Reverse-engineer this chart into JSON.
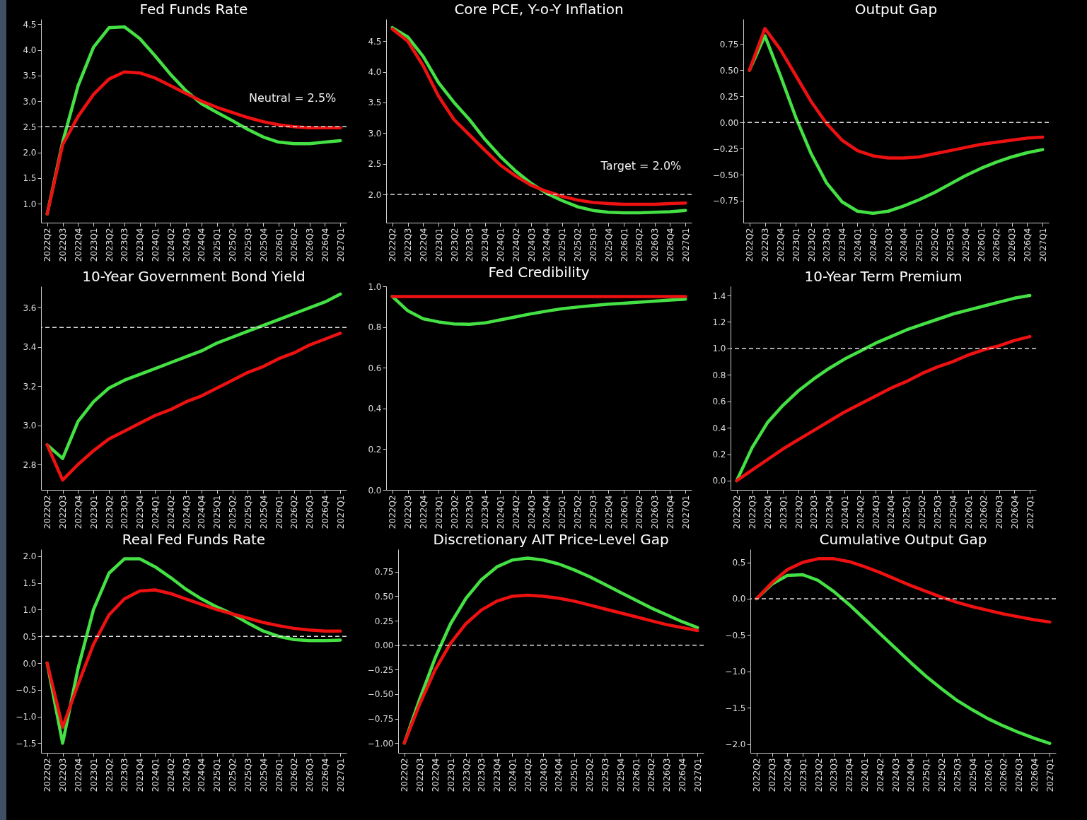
{
  "chart_data": [
    {
      "type": "line",
      "title": "Fed Funds Rate",
      "categories": [
        "2022Q2",
        "2022Q3",
        "2022Q4",
        "2023Q1",
        "2023Q2",
        "2023Q3",
        "2023Q4",
        "2024Q1",
        "2024Q2",
        "2024Q3",
        "2024Q4",
        "2025Q1",
        "2025Q2",
        "2025Q3",
        "2025Q4",
        "2026Q1",
        "2026Q2",
        "2026Q3",
        "2026Q4",
        "2027Q1"
      ],
      "series": [
        {
          "color": "#44e044",
          "values": [
            0.8,
            2.2,
            3.3,
            4.05,
            4.43,
            4.45,
            4.22,
            3.88,
            3.52,
            3.2,
            2.95,
            2.78,
            2.62,
            2.45,
            2.3,
            2.2,
            2.17,
            2.17,
            2.2,
            2.23
          ]
        },
        {
          "color": "#ee1111",
          "values": [
            0.8,
            2.15,
            2.7,
            3.13,
            3.43,
            3.57,
            3.55,
            3.45,
            3.3,
            3.15,
            3.0,
            2.88,
            2.78,
            2.68,
            2.6,
            2.54,
            2.5,
            2.48,
            2.48,
            2.48
          ]
        }
      ],
      "ylim": [
        0.63,
        4.6
      ],
      "yticks": [
        {
          "value": 1,
          "label": "1.0"
        },
        {
          "value": 1.5,
          "label": "1.5"
        },
        {
          "value": 2,
          "label": "2.0"
        },
        {
          "value": 2.5,
          "label": "2.5"
        },
        {
          "value": 3,
          "label": "3.0"
        },
        {
          "value": 3.5,
          "label": "3.5"
        },
        {
          "value": 4,
          "label": "4.0"
        },
        {
          "value": 4.5,
          "label": "4.5"
        }
      ],
      "ref_lines": [
        {
          "axis": "y",
          "value": 2.5,
          "label": "Neutral = 2.5%",
          "color": "#dddddd",
          "line_style": "dashed"
        }
      ]
    },
    {
      "type": "line",
      "title": "Core PCE, Y-o-Y Inflation",
      "categories": [
        "2022Q2",
        "2022Q3",
        "2022Q4",
        "2023Q1",
        "2023Q2",
        "2023Q3",
        "2023Q4",
        "2024Q1",
        "2024Q2",
        "2024Q3",
        "2024Q4",
        "2025Q1",
        "2025Q2",
        "2025Q3",
        "2025Q4",
        "2026Q1",
        "2026Q2",
        "2026Q3",
        "2026Q4",
        "2027Q1"
      ],
      "series": [
        {
          "color": "#44e044",
          "values": [
            4.72,
            4.57,
            4.25,
            3.82,
            3.5,
            3.22,
            2.9,
            2.62,
            2.38,
            2.18,
            2.02,
            1.9,
            1.8,
            1.74,
            1.71,
            1.7,
            1.7,
            1.71,
            1.72,
            1.74
          ]
        },
        {
          "color": "#ee1111",
          "values": [
            4.7,
            4.5,
            4.1,
            3.6,
            3.22,
            2.97,
            2.72,
            2.48,
            2.3,
            2.15,
            2.05,
            1.97,
            1.91,
            1.87,
            1.85,
            1.84,
            1.84,
            1.84,
            1.85,
            1.86
          ]
        }
      ],
      "ylim": [
        1.54,
        4.86
      ],
      "yticks": [
        {
          "value": 2,
          "label": "2.0"
        },
        {
          "value": 2.5,
          "label": "2.5"
        },
        {
          "value": 3,
          "label": "3.0"
        },
        {
          "value": 3.5,
          "label": "3.5"
        },
        {
          "value": 4,
          "label": "4.0"
        },
        {
          "value": 4.5,
          "label": "4.5"
        }
      ],
      "ref_lines": [
        {
          "axis": "y",
          "value": 2.0,
          "label": "Target = 2.0%",
          "color": "#dddddd",
          "line_style": "dashed"
        }
      ]
    },
    {
      "type": "line",
      "title": "Output Gap",
      "categories": [
        "2022Q2",
        "2022Q3",
        "2022Q4",
        "2023Q1",
        "2023Q2",
        "2023Q3",
        "2023Q4",
        "2024Q1",
        "2024Q2",
        "2024Q3",
        "2024Q4",
        "2025Q1",
        "2025Q2",
        "2025Q3",
        "2025Q4",
        "2026Q1",
        "2026Q2",
        "2026Q3",
        "2026Q4",
        "2027Q1"
      ],
      "series": [
        {
          "color": "#44e044",
          "values": [
            0.5,
            0.83,
            0.45,
            0.05,
            -0.3,
            -0.58,
            -0.76,
            -0.85,
            -0.87,
            -0.85,
            -0.8,
            -0.74,
            -0.67,
            -0.59,
            -0.51,
            -0.44,
            -0.38,
            -0.33,
            -0.29,
            -0.26
          ]
        },
        {
          "color": "#ee1111",
          "values": [
            0.5,
            0.9,
            0.7,
            0.45,
            0.2,
            -0.01,
            -0.17,
            -0.27,
            -0.32,
            -0.34,
            -0.34,
            -0.33,
            -0.3,
            -0.27,
            -0.24,
            -0.21,
            -0.19,
            -0.17,
            -0.15,
            -0.14
          ]
        }
      ],
      "ylim": [
        -0.96,
        0.99
      ],
      "yticks": [
        {
          "value": -0.75,
          "label": "−0.75"
        },
        {
          "value": -0.5,
          "label": "−0.50"
        },
        {
          "value": -0.25,
          "label": "−0.25"
        },
        {
          "value": 0,
          "label": "0.00"
        },
        {
          "value": 0.25,
          "label": "0.25"
        },
        {
          "value": 0.5,
          "label": "0.50"
        },
        {
          "value": 0.75,
          "label": "0.75"
        }
      ],
      "ref_lines": [
        {
          "axis": "y",
          "value": 0,
          "color": "#dddddd",
          "line_style": "dashed"
        }
      ]
    },
    {
      "type": "line",
      "title": "10-Year Government Bond Yield",
      "categories": [
        "2022Q2",
        "2022Q3",
        "2022Q4",
        "2023Q1",
        "2023Q2",
        "2023Q3",
        "2023Q4",
        "2024Q1",
        "2024Q2",
        "2024Q3",
        "2024Q4",
        "2025Q1",
        "2025Q2",
        "2025Q3",
        "2025Q4",
        "2026Q1",
        "2026Q2",
        "2026Q3",
        "2026Q4",
        "2027Q1"
      ],
      "series": [
        {
          "color": "#44e044",
          "values": [
            2.9,
            2.83,
            3.02,
            3.12,
            3.19,
            3.23,
            3.26,
            3.29,
            3.32,
            3.35,
            3.38,
            3.42,
            3.45,
            3.48,
            3.51,
            3.54,
            3.57,
            3.6,
            3.63,
            3.67
          ]
        },
        {
          "color": "#ee1111",
          "values": [
            2.9,
            2.72,
            2.8,
            2.87,
            2.93,
            2.97,
            3.01,
            3.05,
            3.08,
            3.12,
            3.15,
            3.19,
            3.23,
            3.27,
            3.3,
            3.34,
            3.37,
            3.41,
            3.44,
            3.47
          ]
        }
      ],
      "ylim": [
        2.67,
        3.71
      ],
      "yticks": [
        {
          "value": 2.8,
          "label": "2.8"
        },
        {
          "value": 3,
          "label": "3.0"
        },
        {
          "value": 3.2,
          "label": "3.2"
        },
        {
          "value": 3.4,
          "label": "3.4"
        },
        {
          "value": 3.6,
          "label": "3.6"
        }
      ],
      "ref_lines": [
        {
          "axis": "y",
          "value": 3.5,
          "color": "#dddddd",
          "line_style": "dashed"
        }
      ]
    },
    {
      "type": "line",
      "title": "Fed Credibility",
      "categories": [
        "2022Q2",
        "2022Q3",
        "2022Q4",
        "2023Q1",
        "2023Q2",
        "2023Q3",
        "2023Q4",
        "2024Q1",
        "2024Q2",
        "2024Q3",
        "2024Q4",
        "2025Q1",
        "2025Q2",
        "2025Q3",
        "2025Q4",
        "2026Q1",
        "2026Q2",
        "2026Q3",
        "2026Q4",
        "2027Q1"
      ],
      "series": [
        {
          "color": "#44e044",
          "values": [
            0.95,
            0.88,
            0.84,
            0.825,
            0.815,
            0.813,
            0.82,
            0.835,
            0.85,
            0.865,
            0.878,
            0.89,
            0.898,
            0.905,
            0.912,
            0.917,
            0.922,
            0.927,
            0.932,
            0.937
          ]
        },
        {
          "color": "#ee1111",
          "values": [
            0.95,
            0.95,
            0.95,
            0.95,
            0.95,
            0.95,
            0.95,
            0.95,
            0.95,
            0.95,
            0.95,
            0.95,
            0.95,
            0.95,
            0.95,
            0.95,
            0.95,
            0.95,
            0.95,
            0.95
          ]
        }
      ],
      "ylim": [
        0,
        1
      ],
      "yticks": [
        {
          "value": 0,
          "label": "0.0"
        },
        {
          "value": 0.2,
          "label": "0.2"
        },
        {
          "value": 0.4,
          "label": "0.4"
        },
        {
          "value": 0.6,
          "label": "0.6"
        },
        {
          "value": 0.8,
          "label": "0.8"
        },
        {
          "value": 1,
          "label": "1.0"
        }
      ]
    },
    {
      "type": "line",
      "title": "10-Year Term Premium",
      "categories": [
        "2022Q2",
        "2022Q3",
        "2022Q4",
        "2023Q1",
        "2023Q2",
        "2023Q3",
        "2023Q4",
        "2024Q1",
        "2024Q2",
        "2024Q3",
        "2024Q4",
        "2025Q1",
        "2025Q2",
        "2025Q3",
        "2025Q4",
        "2026Q1",
        "2026Q2",
        "2026Q3",
        "2026Q4",
        "2027Q1"
      ],
      "series": [
        {
          "color": "#44e044",
          "values": [
            0,
            0.25,
            0.44,
            0.57,
            0.68,
            0.77,
            0.85,
            0.92,
            0.98,
            1.04,
            1.09,
            1.14,
            1.18,
            1.22,
            1.26,
            1.29,
            1.32,
            1.35,
            1.38,
            1.4
          ]
        },
        {
          "color": "#ee1111",
          "values": [
            0,
            0.08,
            0.16,
            0.24,
            0.31,
            0.38,
            0.45,
            0.52,
            0.58,
            0.64,
            0.7,
            0.75,
            0.81,
            0.86,
            0.9,
            0.95,
            0.99,
            1.02,
            1.06,
            1.09
          ]
        }
      ],
      "ylim": [
        -0.07,
        1.47
      ],
      "yticks": [
        {
          "value": 0,
          "label": "0.0"
        },
        {
          "value": 0.2,
          "label": "0.2"
        },
        {
          "value": 0.4,
          "label": "0.4"
        },
        {
          "value": 0.6,
          "label": "0.6"
        },
        {
          "value": 0.8,
          "label": "0.8"
        },
        {
          "value": 1,
          "label": "1.0"
        },
        {
          "value": 1.2,
          "label": "1.2"
        },
        {
          "value": 1.4,
          "label": "1.4"
        }
      ],
      "ref_lines": [
        {
          "axis": "y",
          "value": 1.0,
          "color": "#dddddd",
          "line_style": "dashed"
        }
      ]
    },
    {
      "type": "line",
      "title": "Real Fed Funds Rate",
      "categories": [
        "2022Q2",
        "2022Q3",
        "2022Q4",
        "2023Q1",
        "2023Q2",
        "2023Q3",
        "2023Q4",
        "2024Q1",
        "2024Q2",
        "2024Q3",
        "2024Q4",
        "2025Q1",
        "2025Q2",
        "2025Q3",
        "2025Q4",
        "2026Q1",
        "2026Q2",
        "2026Q3",
        "2026Q4",
        "2027Q1"
      ],
      "series": [
        {
          "color": "#44e044",
          "values": [
            0,
            -1.5,
            -0.1,
            1.0,
            1.68,
            1.95,
            1.95,
            1.8,
            1.6,
            1.38,
            1.2,
            1.05,
            0.92,
            0.75,
            0.6,
            0.5,
            0.44,
            0.42,
            0.42,
            0.43
          ]
        },
        {
          "color": "#ee1111",
          "values": [
            0,
            -1.2,
            -0.4,
            0.35,
            0.9,
            1.2,
            1.35,
            1.37,
            1.3,
            1.2,
            1.1,
            1.0,
            0.92,
            0.84,
            0.76,
            0.7,
            0.65,
            0.62,
            0.6,
            0.6
          ]
        }
      ],
      "ylim": [
        -1.68,
        2.13
      ],
      "yticks": [
        {
          "value": -1.5,
          "label": "−1.5"
        },
        {
          "value": -1,
          "label": "−1.0"
        },
        {
          "value": -0.5,
          "label": "−0.5"
        },
        {
          "value": 0,
          "label": "0.0"
        },
        {
          "value": 0.5,
          "label": "0.5"
        },
        {
          "value": 1,
          "label": "1.0"
        },
        {
          "value": 1.5,
          "label": "1.5"
        },
        {
          "value": 2,
          "label": "2.0"
        }
      ],
      "ref_lines": [
        {
          "axis": "y",
          "value": 0.5,
          "color": "#dddddd",
          "line_style": "dashed"
        }
      ]
    },
    {
      "type": "line",
      "title": "Discretionary AIT Price-Level Gap",
      "categories": [
        "2022Q2",
        "2022Q3",
        "2022Q4",
        "2023Q1",
        "2023Q2",
        "2023Q3",
        "2023Q4",
        "2024Q1",
        "2024Q2",
        "2024Q3",
        "2024Q4",
        "2025Q1",
        "2025Q2",
        "2025Q3",
        "2025Q4",
        "2026Q1",
        "2026Q2",
        "2026Q3",
        "2026Q4",
        "2027Q1"
      ],
      "series": [
        {
          "color": "#44e044",
          "values": [
            -1.0,
            -0.55,
            -0.13,
            0.22,
            0.48,
            0.67,
            0.8,
            0.87,
            0.89,
            0.87,
            0.83,
            0.77,
            0.7,
            0.62,
            0.54,
            0.46,
            0.38,
            0.31,
            0.24,
            0.18
          ]
        },
        {
          "color": "#ee1111",
          "values": [
            -1.0,
            -0.6,
            -0.25,
            0.02,
            0.22,
            0.36,
            0.45,
            0.5,
            0.51,
            0.5,
            0.48,
            0.45,
            0.41,
            0.37,
            0.33,
            0.29,
            0.25,
            0.21,
            0.18,
            0.15
          ]
        }
      ],
      "ylim": [
        -1.1,
        0.98
      ],
      "yticks": [
        {
          "value": -1,
          "label": "−1.00"
        },
        {
          "value": -0.75,
          "label": "−0.75"
        },
        {
          "value": -0.5,
          "label": "−0.50"
        },
        {
          "value": -0.25,
          "label": "−0.25"
        },
        {
          "value": 0,
          "label": "0.00"
        },
        {
          "value": 0.25,
          "label": "0.25"
        },
        {
          "value": 0.5,
          "label": "0.50"
        },
        {
          "value": 0.75,
          "label": "0.75"
        }
      ],
      "ref_lines": [
        {
          "axis": "y",
          "value": 0,
          "color": "#dddddd",
          "line_style": "dashed"
        }
      ]
    },
    {
      "type": "line",
      "title": "Cumulative Output Gap",
      "categories": [
        "2022Q2",
        "2022Q3",
        "2022Q4",
        "2023Q1",
        "2023Q2",
        "2023Q3",
        "2023Q4",
        "2024Q1",
        "2024Q2",
        "2024Q3",
        "2024Q4",
        "2025Q1",
        "2025Q2",
        "2025Q3",
        "2025Q4",
        "2026Q1",
        "2026Q2",
        "2026Q3",
        "2026Q4",
        "2027Q1"
      ],
      "series": [
        {
          "color": "#44e044",
          "values": [
            0,
            0.2,
            0.32,
            0.33,
            0.25,
            0.1,
            -0.08,
            -0.28,
            -0.48,
            -0.68,
            -0.88,
            -1.07,
            -1.24,
            -1.4,
            -1.53,
            -1.65,
            -1.75,
            -1.84,
            -1.92,
            -1.99
          ]
        },
        {
          "color": "#ee1111",
          "values": [
            0,
            0.22,
            0.4,
            0.5,
            0.55,
            0.55,
            0.51,
            0.44,
            0.36,
            0.27,
            0.18,
            0.1,
            0.02,
            -0.05,
            -0.11,
            -0.16,
            -0.21,
            -0.25,
            -0.29,
            -0.32
          ]
        }
      ],
      "ylim": [
        -2.12,
        0.68
      ],
      "yticks": [
        {
          "value": -2,
          "label": "−2.0"
        },
        {
          "value": -1.5,
          "label": "−1.5"
        },
        {
          "value": -1,
          "label": "−1.0"
        },
        {
          "value": -0.5,
          "label": "−0.5"
        },
        {
          "value": 0,
          "label": "0.0"
        },
        {
          "value": 0.5,
          "label": "0.5"
        }
      ],
      "ref_lines": [
        {
          "axis": "y",
          "value": 0,
          "color": "#dddddd",
          "line_style": "dashed"
        }
      ]
    }
  ]
}
